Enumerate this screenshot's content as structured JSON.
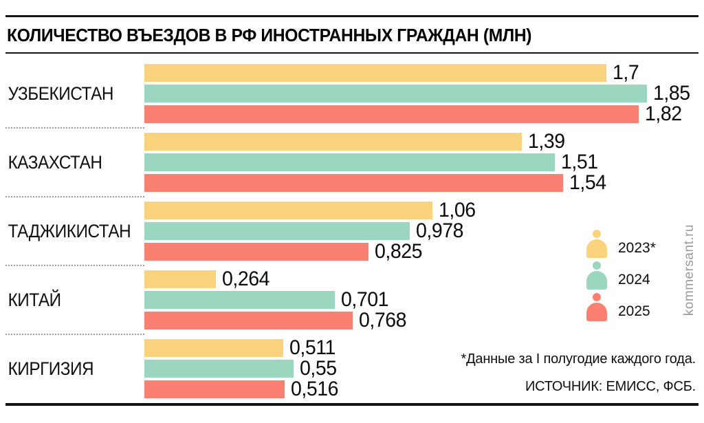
{
  "title": "КОЛИЧЕСТВО ВЪЕЗДОВ В РФ ИНОСТРАННЫХ ГРАЖДАН (МЛН)",
  "watermark": "kommersant.ru",
  "footnote": "*Данные за I полугодие каждого года.",
  "source": "ИСТОЧНИК: ЕМИСС, ФСБ.",
  "colors": {
    "year_2023": "#FAD37C",
    "year_2024": "#9BD6BF",
    "year_2025": "#FA8072",
    "rule": "#141414",
    "divider_dotted": "#9b9b9b",
    "watermark_gray": "#9a9a9a"
  },
  "legend": {
    "items": [
      {
        "label": "2023*",
        "color": "#FAD37C"
      },
      {
        "label": "2024",
        "color": "#9BD6BF"
      },
      {
        "label": "2025",
        "color": "#FA8072"
      }
    ]
  },
  "chart_data": {
    "type": "bar",
    "orientation": "horizontal",
    "title": "КОЛИЧЕСТВО ВЪЕЗДОВ В РФ ИНОСТРАННЫХ ГРАЖДАН (МЛН)",
    "unit": "млн",
    "xlim": [
      0,
      1.85
    ],
    "grid": false,
    "legend_position": "right-middle",
    "categories": [
      "УЗБЕКИСТАН",
      "КАЗАХСТАН",
      "ТАДЖИКИСТАН",
      "КИТАЙ",
      "КИРГИЗИЯ"
    ],
    "series": [
      {
        "name": "2023*",
        "color": "#FAD37C",
        "values": [
          1.7,
          1.39,
          1.06,
          0.264,
          0.511
        ],
        "labels": [
          "1,7",
          "1,39",
          "1,06",
          "0,264",
          "0,511"
        ]
      },
      {
        "name": "2024",
        "color": "#9BD6BF",
        "values": [
          1.85,
          1.51,
          0.978,
          0.701,
          0.55
        ],
        "labels": [
          "1,85",
          "1,51",
          "0,978",
          "0,701",
          "0,55"
        ]
      },
      {
        "name": "2025",
        "color": "#FA8072",
        "values": [
          1.82,
          1.54,
          0.825,
          0.768,
          0.516
        ],
        "labels": [
          "1,82",
          "1,54",
          "0,825",
          "0,768",
          "0,516"
        ]
      }
    ]
  }
}
